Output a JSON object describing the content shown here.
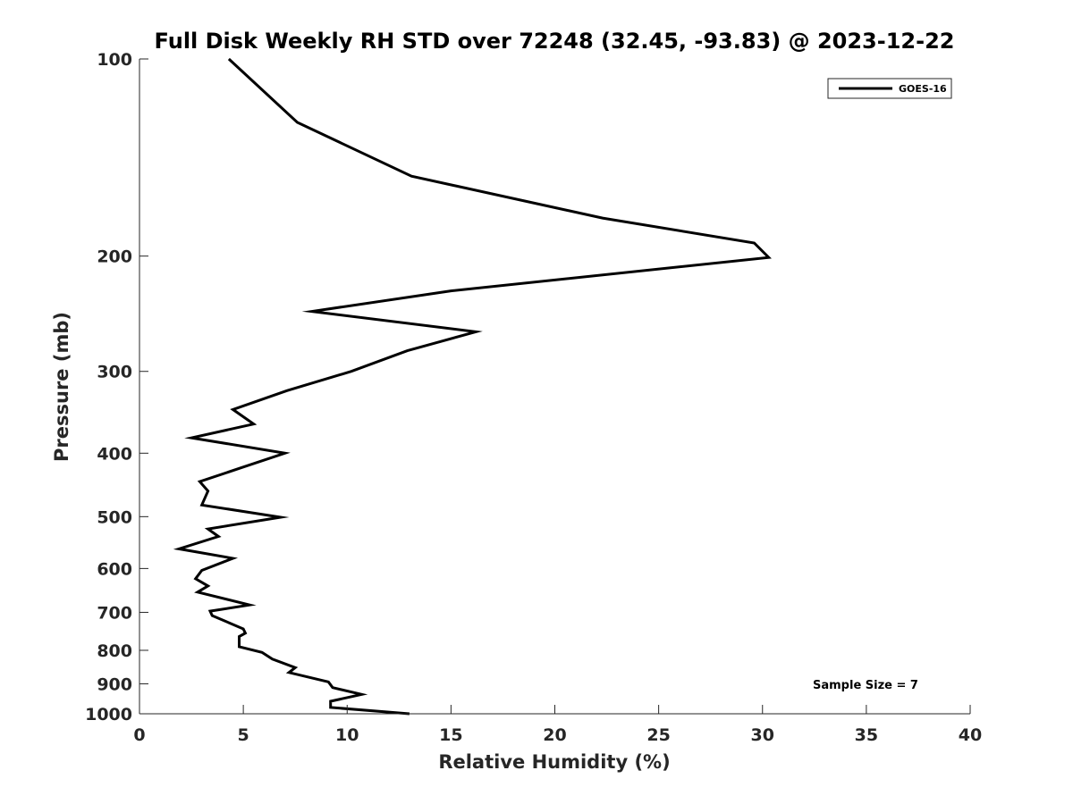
{
  "chart_data": {
    "type": "line",
    "title": "Full Disk Weekly RH STD over 72248 (32.45, -93.83) @ 2023-12-22",
    "xlabel": "Relative Humidity (%)",
    "ylabel": "Pressure (mb)",
    "xlim": [
      0,
      40
    ],
    "ylim": [
      1000,
      100
    ],
    "yscale": "log",
    "x_ticks": [
      "0",
      "5",
      "10",
      "15",
      "20",
      "25",
      "30",
      "35",
      "40"
    ],
    "y_ticks": [
      "100",
      "200",
      "300",
      "400",
      "500",
      "600",
      "700",
      "800",
      "900",
      "1000"
    ],
    "grid": false,
    "legend_position": "top-right",
    "annotation": "Sample Size = 7",
    "line_color": "#000000",
    "series": [
      {
        "name": "GOES-16",
        "points": [
          [
            4.3,
            100
          ],
          [
            7.6,
            125
          ],
          [
            13.1,
            151
          ],
          [
            22.3,
            175
          ],
          [
            29.6,
            191
          ],
          [
            30.3,
            201
          ],
          [
            15.0,
            226
          ],
          [
            8.3,
            243
          ],
          [
            16.2,
            261
          ],
          [
            12.9,
            279
          ],
          [
            10.2,
            300
          ],
          [
            7.1,
            321
          ],
          [
            4.5,
            343
          ],
          [
            5.5,
            361
          ],
          [
            2.5,
            379
          ],
          [
            7.0,
            400
          ],
          [
            4.9,
            421
          ],
          [
            2.9,
            442
          ],
          [
            3.3,
            457
          ],
          [
            3.0,
            480
          ],
          [
            6.8,
            501
          ],
          [
            3.3,
            522
          ],
          [
            3.8,
            536
          ],
          [
            1.9,
            560
          ],
          [
            4.5,
            579
          ],
          [
            3.0,
            604
          ],
          [
            2.7,
            622
          ],
          [
            3.3,
            638
          ],
          [
            2.8,
            652
          ],
          [
            5.3,
            682
          ],
          [
            3.4,
            697
          ],
          [
            3.5,
            708
          ],
          [
            5.0,
            742
          ],
          [
            5.1,
            753
          ],
          [
            4.8,
            762
          ],
          [
            4.8,
            790
          ],
          [
            5.9,
            806
          ],
          [
            6.4,
            825
          ],
          [
            7.5,
            850
          ],
          [
            7.2,
            865
          ],
          [
            9.1,
            894
          ],
          [
            9.3,
            912
          ],
          [
            10.7,
            934
          ],
          [
            9.2,
            957
          ],
          [
            9.2,
            978
          ],
          [
            13.0,
            1000
          ]
        ]
      }
    ]
  }
}
